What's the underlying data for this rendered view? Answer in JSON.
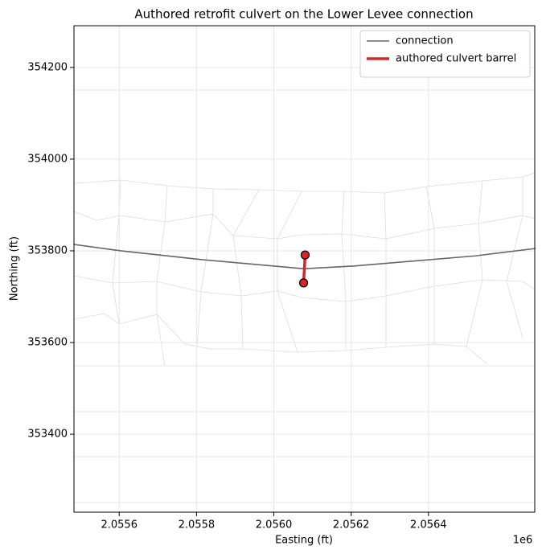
{
  "chart_data": {
    "type": "line",
    "title": "Authored retrofit culvert on the Lower Levee connection",
    "x_label": "Easting (ft)",
    "y_label": "Northing (ft)",
    "x_offset_label": "1e6",
    "xlim": [
      2055483,
      2056675
    ],
    "ylim": [
      353230,
      354291
    ],
    "xticks": [
      {
        "value": 2055600,
        "label": "2.0556"
      },
      {
        "value": 2055800,
        "label": "2.0558"
      },
      {
        "value": 2056000,
        "label": "2.0560"
      },
      {
        "value": 2056200,
        "label": "2.0562"
      },
      {
        "value": 2056400,
        "label": "2.0564"
      }
    ],
    "yticks": [
      353400,
      353600,
      353800,
      354000,
      354200
    ],
    "grid": true,
    "legend": "upper right",
    "series": [
      {
        "name": "connection",
        "color": "#666666",
        "width": 1.6,
        "x": [
          2055483,
          2055604,
          2055812,
          2056077,
          2056208,
          2056521,
          2056675
        ],
        "values": [
          353814,
          353800,
          353781,
          353761,
          353767,
          353789,
          353805
        ]
      },
      {
        "name": "authored culvert barrel",
        "color": "#d62728",
        "width": 3.5,
        "markers": true,
        "x": [
          2056081,
          2056077
        ],
        "values": [
          353791,
          353730
        ]
      }
    ]
  }
}
